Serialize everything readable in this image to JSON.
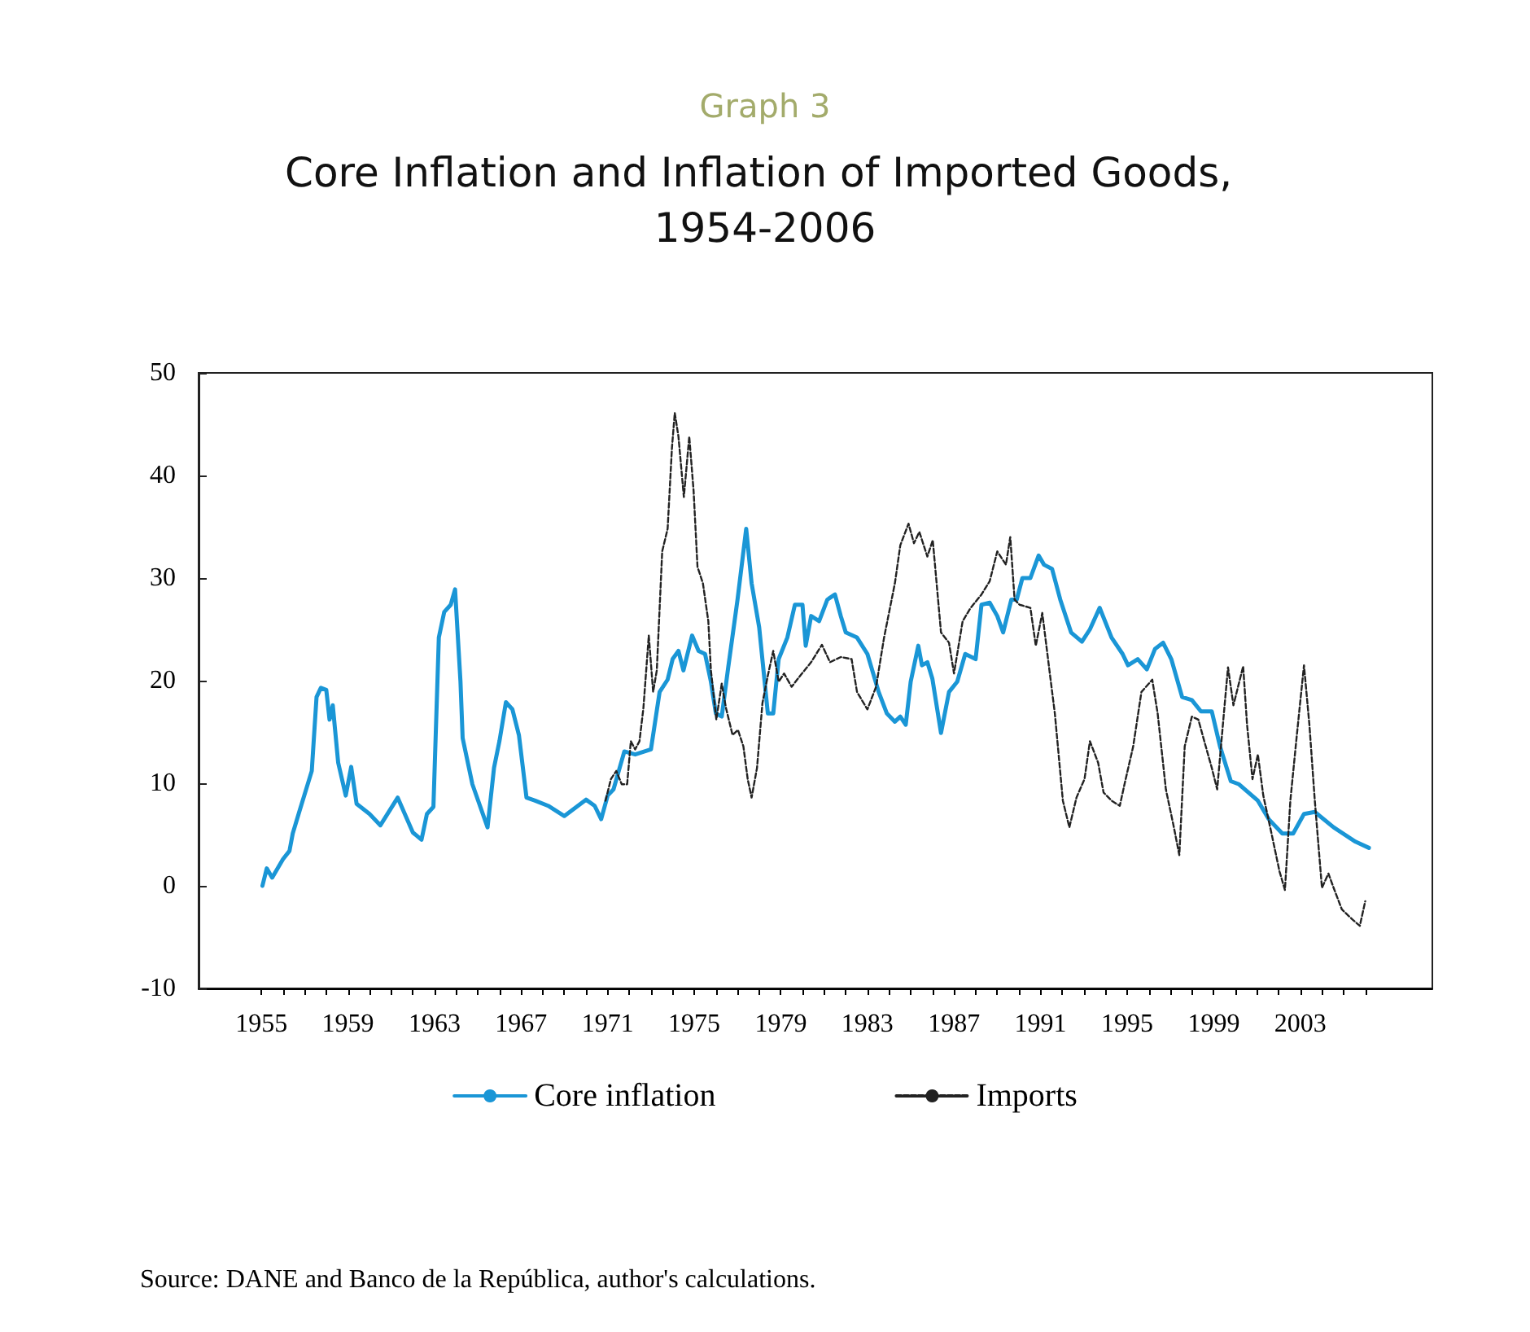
{
  "chart_data": {
    "type": "line",
    "subtitle": "Graph 3",
    "title": "Core Inflation and Inflation of Imported Goods, 1954-2006",
    "annotations": [
      "Source: DANE and Banco de la República, author's calculations."
    ],
    "xlim": [
      1952.1,
      2009.1
    ],
    "ylim": [
      -10,
      50
    ],
    "yticks": [
      -10,
      0,
      10,
      20,
      30,
      40,
      50
    ],
    "xticks": [
      1955,
      {
        "value": 1956,
        "label": null
      },
      {
        "value": 1957,
        "label": null
      },
      {
        "value": 1958,
        "label": null
      },
      1959,
      {
        "value": 1960,
        "label": null
      },
      {
        "value": 1961,
        "label": null
      },
      {
        "value": 1962,
        "label": null
      },
      1963,
      {
        "value": 1964,
        "label": null
      },
      {
        "value": 1965,
        "label": null
      },
      {
        "value": 1966,
        "label": null
      },
      1967,
      {
        "value": 1968,
        "label": null
      },
      {
        "value": 1969,
        "label": null
      },
      {
        "value": 1970,
        "label": null
      },
      1971,
      {
        "value": 1972,
        "label": null
      },
      {
        "value": 1973,
        "label": null
      },
      {
        "value": 1974,
        "label": null
      },
      1975,
      {
        "value": 1976,
        "label": null
      },
      {
        "value": 1977,
        "label": null
      },
      {
        "value": 1978,
        "label": null
      },
      1979,
      {
        "value": 1980,
        "label": null
      },
      {
        "value": 1981,
        "label": null
      },
      {
        "value": 1982,
        "label": null
      },
      1983,
      {
        "value": 1984,
        "label": null
      },
      {
        "value": 1985,
        "label": null
      },
      {
        "value": 1986,
        "label": null
      },
      1987,
      {
        "value": 1988,
        "label": null
      },
      {
        "value": 1989,
        "label": null
      },
      {
        "value": 1990,
        "label": null
      },
      1991,
      {
        "value": 1992,
        "label": null
      },
      {
        "value": 1993,
        "label": null
      },
      {
        "value": 1994,
        "label": null
      },
      1995,
      {
        "value": 1996,
        "label": null
      },
      {
        "value": 1997,
        "label": null
      },
      {
        "value": 1998,
        "label": null
      },
      1999,
      {
        "value": 2000,
        "label": null
      },
      {
        "value": 2001,
        "label": null
      },
      {
        "value": 2002,
        "label": null
      },
      2003,
      {
        "value": 2004,
        "label": null
      },
      {
        "value": 2005,
        "label": null
      },
      {
        "value": 2006,
        "label": null
      }
    ],
    "grid": false,
    "legend": "bottom",
    "marker": "none",
    "series": [
      {
        "name": "Core inflation",
        "color": "#1a96d6",
        "line_style": "solid",
        "x": [
          1955.05,
          1955.25,
          1955.5,
          1956.0,
          1956.3,
          1956.45,
          1956.75,
          1957.33,
          1957.55,
          1957.75,
          1958.0,
          1958.15,
          1958.3,
          1958.55,
          1958.9,
          1959.15,
          1959.4,
          1960.0,
          1960.5,
          1961.3,
          1962.0,
          1962.4,
          1962.65,
          1962.95,
          1963.2,
          1963.45,
          1963.75,
          1963.95,
          1964.2,
          1964.3,
          1964.75,
          1965.45,
          1965.75,
          1966.0,
          1966.3,
          1966.6,
          1966.9,
          1967.25,
          1967.65,
          1968.25,
          1969.0,
          1970.0,
          1970.4,
          1970.7,
          1971.0,
          1971.27,
          1971.77,
          1972.27,
          1973.0,
          1973.4,
          1973.77,
          1974.0,
          1974.27,
          1974.5,
          1974.9,
          1975.2,
          1975.5,
          1975.77,
          1976.0,
          1976.27,
          1976.57,
          1977.0,
          1977.4,
          1977.65,
          1978.0,
          1978.4,
          1978.65,
          1978.9,
          1979.3,
          1979.65,
          1980.0,
          1980.15,
          1980.4,
          1980.77,
          1981.15,
          1981.5,
          1981.77,
          1982.0,
          1982.52,
          1983.0,
          1983.52,
          1983.9,
          1984.27,
          1984.52,
          1984.77,
          1985.0,
          1985.35,
          1985.52,
          1985.77,
          1986.0,
          1986.4,
          1986.77,
          1987.15,
          1987.52,
          1988.0,
          1988.27,
          1988.65,
          1989.0,
          1989.27,
          1989.65,
          1989.9,
          1990.16,
          1990.53,
          1990.91,
          1991.16,
          1991.53,
          1991.91,
          1992.41,
          1992.91,
          1993.28,
          1993.73,
          1994.28,
          1994.79,
          1995.04,
          1995.49,
          1995.91,
          1996.29,
          1996.66,
          1997.04,
          1997.54,
          1997.99,
          1998.41,
          1998.91,
          1999.29,
          1999.79,
          2000.17,
          2001.04,
          2001.54,
          2002.17,
          2002.67,
          2003.17,
          2003.67,
          2004.54,
          2005.55,
          2006.17
        ],
        "values": [
          0,
          1.7,
          0.8,
          2.6,
          3.4,
          5.1,
          7.2,
          11.2,
          18.4,
          19.3,
          19.1,
          16.2,
          17.6,
          12.0,
          8.8,
          11.6,
          8.0,
          7.0,
          5.9,
          8.6,
          5.2,
          4.5,
          7.0,
          7.7,
          24.2,
          26.7,
          27.4,
          28.9,
          19.9,
          14.4,
          9.9,
          5.7,
          11.5,
          14.1,
          17.9,
          17.2,
          14.7,
          8.6,
          8.3,
          7.8,
          6.8,
          8.4,
          7.8,
          6.5,
          8.8,
          9.4,
          13.1,
          12.8,
          13.3,
          18.9,
          20.1,
          22.1,
          22.9,
          21.0,
          24.4,
          22.9,
          22.6,
          19.9,
          16.8,
          16.5,
          21.3,
          27.9,
          34.8,
          29.5,
          25.2,
          16.8,
          16.8,
          22.1,
          24.2,
          27.4,
          27.4,
          23.4,
          26.3,
          25.8,
          27.9,
          28.4,
          26.3,
          24.7,
          24.2,
          22.6,
          18.9,
          16.8,
          16.0,
          16.5,
          15.7,
          19.9,
          23.4,
          21.5,
          21.8,
          20.2,
          14.9,
          18.9,
          19.9,
          22.6,
          22.1,
          27.4,
          27.6,
          26.3,
          24.7,
          27.9,
          27.9,
          30.0,
          30.0,
          32.2,
          31.3,
          30.9,
          27.9,
          24.7,
          23.8,
          25.0,
          27.1,
          24.2,
          22.6,
          21.5,
          22.1,
          21.1,
          23.1,
          23.7,
          22.1,
          18.4,
          18.1,
          17.0,
          17.0,
          13.6,
          10.2,
          9.9,
          8.3,
          6.5,
          5.1,
          5.1,
          7.0,
          7.2,
          5.7,
          4.3,
          3.7
        ]
      },
      {
        "name": "Imports",
        "color": "#222222",
        "line_style": "dashed",
        "x": [
          1970.9,
          1971.15,
          1971.4,
          1971.65,
          1971.9,
          1972.07,
          1972.27,
          1972.47,
          1972.65,
          1972.9,
          1973.1,
          1973.27,
          1973.52,
          1973.77,
          1973.97,
          1974.1,
          1974.27,
          1974.52,
          1974.77,
          1974.97,
          1975.15,
          1975.4,
          1975.65,
          1975.77,
          1976.02,
          1976.27,
          1976.47,
          1976.77,
          1977.02,
          1977.27,
          1977.47,
          1977.65,
          1977.9,
          1978.15,
          1978.4,
          1978.65,
          1978.9,
          1979.15,
          1979.5,
          1979.9,
          1980.4,
          1980.9,
          1981.27,
          1981.77,
          1982.27,
          1982.52,
          1983.0,
          1983.4,
          1983.77,
          1984.27,
          1984.52,
          1984.9,
          1985.15,
          1985.4,
          1985.77,
          1986.02,
          1986.4,
          1986.77,
          1987.0,
          1987.4,
          1987.77,
          1988.27,
          1988.65,
          1989.0,
          1989.4,
          1989.6,
          1989.8,
          1990.03,
          1990.53,
          1990.78,
          1991.08,
          1991.41,
          1991.66,
          1992.03,
          1992.33,
          1992.66,
          1993.03,
          1993.28,
          1993.66,
          1993.91,
          1994.28,
          1994.66,
          1994.91,
          1995.28,
          1995.66,
          1996.16,
          1996.41,
          1996.79,
          1997.16,
          1997.41,
          1997.66,
          1997.99,
          1998.29,
          1998.59,
          1998.91,
          1999.16,
          1999.49,
          1999.66,
          1999.91,
          2000.36,
          2000.54,
          2000.79,
          2001.04,
          2001.29,
          2001.67,
          2002.04,
          2002.29,
          2002.54,
          2002.84,
          2003.17,
          2003.42,
          2003.67,
          2004.0,
          2004.3,
          2004.54,
          2004.92,
          2005.42,
          2005.75,
          2006.0
        ],
        "values": [
          8.3,
          10.4,
          11.2,
          9.9,
          9.9,
          14.1,
          13.3,
          14.1,
          17.3,
          24.4,
          18.9,
          21.0,
          32.6,
          34.8,
          42.7,
          46.1,
          43.8,
          37.9,
          43.8,
          38.5,
          31.1,
          29.5,
          25.8,
          21.0,
          16.2,
          19.7,
          17.3,
          14.7,
          15.2,
          13.6,
          10.4,
          8.6,
          11.5,
          17.8,
          20.5,
          22.9,
          19.9,
          20.7,
          19.4,
          20.5,
          21.8,
          23.5,
          21.8,
          22.3,
          22.1,
          18.9,
          17.2,
          19.4,
          24.2,
          29.5,
          33.2,
          35.3,
          33.4,
          34.5,
          32.1,
          33.7,
          24.7,
          23.7,
          20.7,
          25.8,
          27.1,
          28.4,
          29.7,
          32.6,
          31.3,
          34.0,
          27.9,
          27.4,
          27.1,
          23.4,
          26.6,
          21.0,
          16.8,
          8.3,
          5.7,
          8.6,
          10.4,
          14.1,
          12.0,
          9.1,
          8.3,
          7.8,
          10.2,
          13.6,
          18.9,
          20.1,
          16.8,
          9.4,
          5.7,
          3.0,
          13.6,
          16.5,
          16.2,
          13.9,
          11.5,
          9.4,
          17.3,
          21.3,
          17.6,
          21.4,
          15.7,
          10.4,
          12.8,
          8.8,
          5.1,
          1.4,
          -0.4,
          8.3,
          14.7,
          21.5,
          15.7,
          8.3,
          -0.2,
          1.2,
          -0.2,
          -2.3,
          -3.3,
          -3.9,
          -1.5
        ]
      }
    ]
  }
}
